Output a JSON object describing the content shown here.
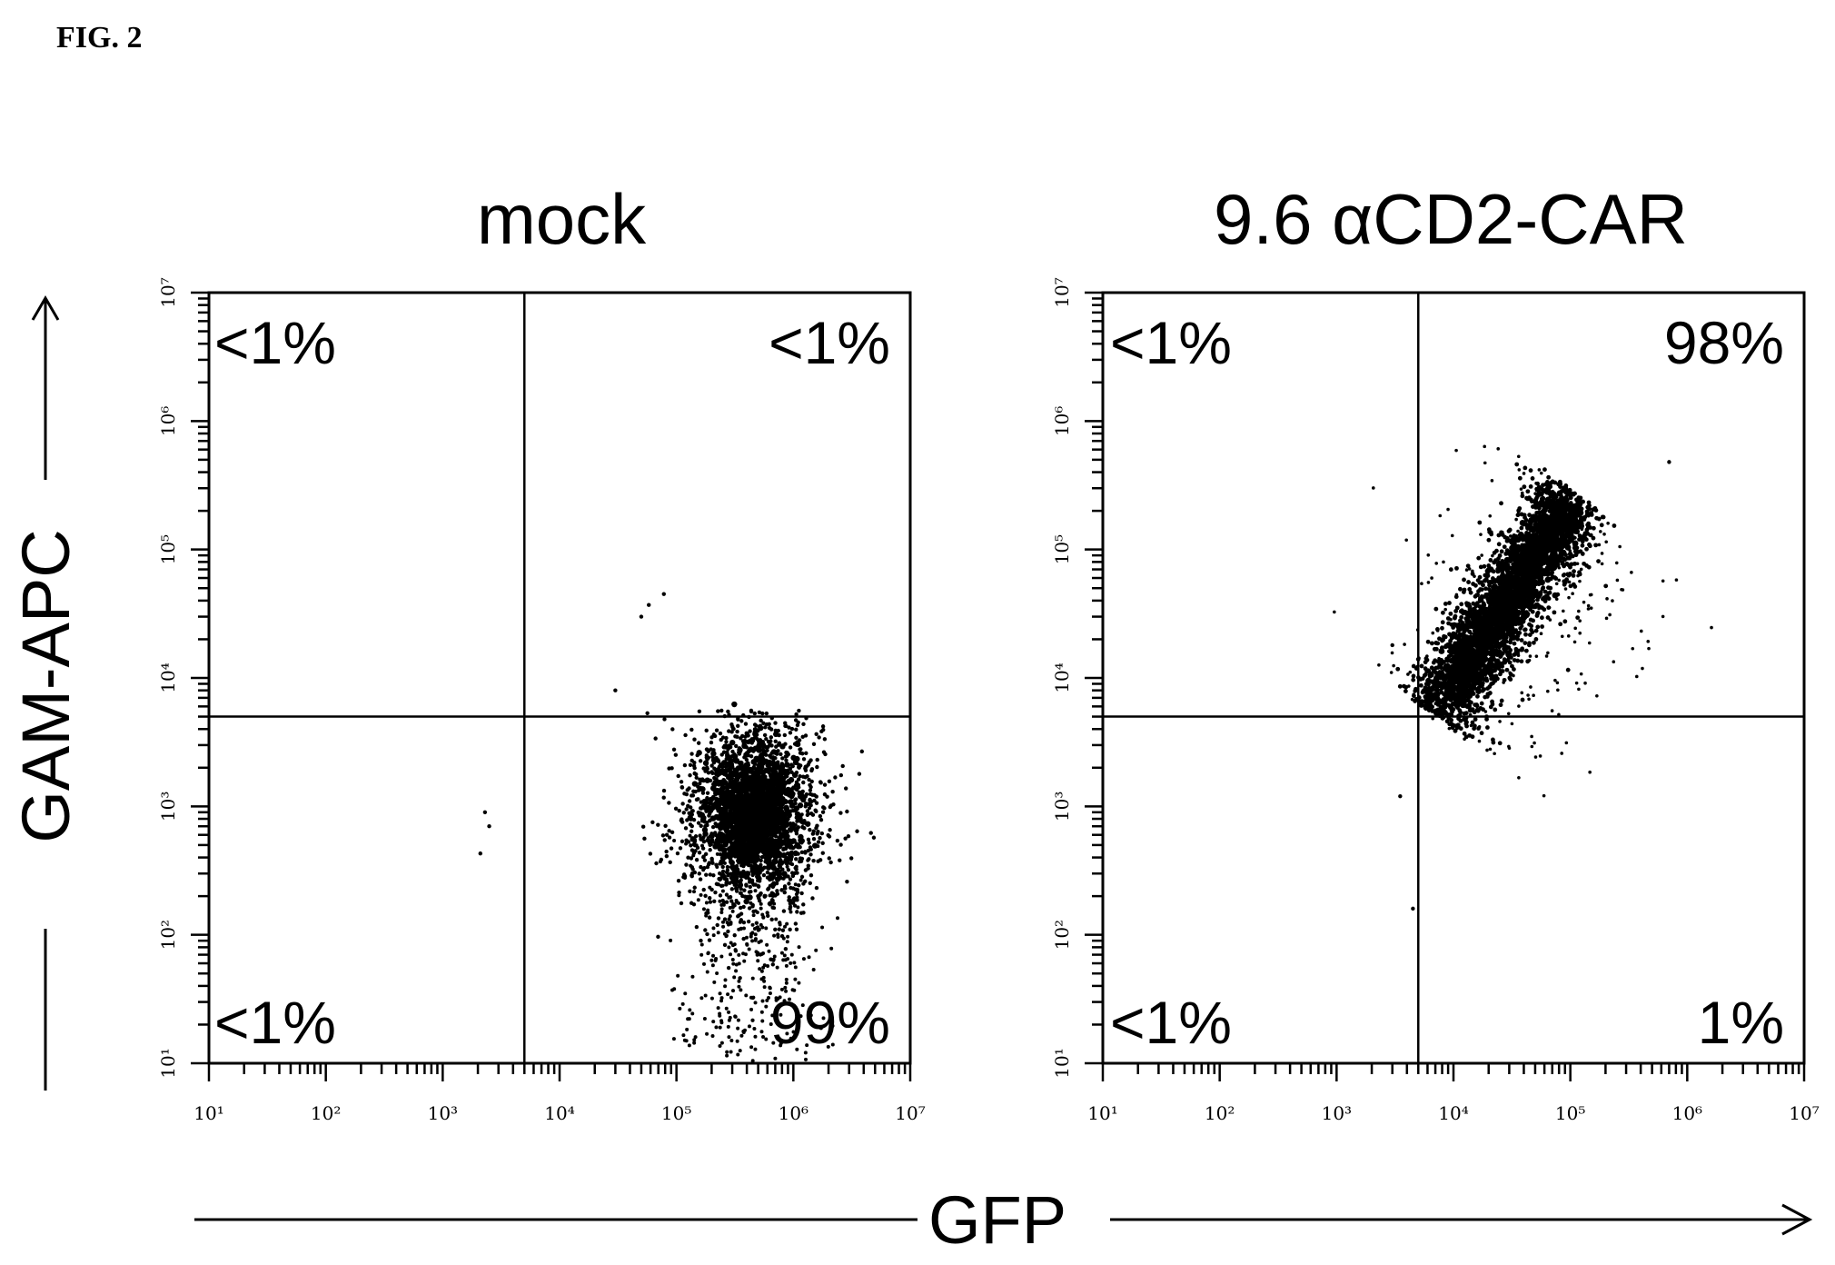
{
  "figure_label": "FIG. 2",
  "axis_labels": {
    "x": "GFP",
    "y": "GAM-APC"
  },
  "chart_data": [
    {
      "type": "scatter",
      "title": "mock",
      "xlabel": "GFP",
      "ylabel": "GAM-APC",
      "x_scale": "log",
      "y_scale": "log",
      "xlim": [
        10,
        10000000
      ],
      "ylim": [
        10,
        10000000
      ],
      "x_ticks": [
        "10¹",
        "10²",
        "10³",
        "10⁴",
        "10⁵",
        "10⁶",
        "10⁷"
      ],
      "y_ticks": [
        "10¹",
        "10²",
        "10³",
        "10⁴",
        "10⁵",
        "10⁶",
        "10⁷"
      ],
      "gate": {
        "x": 5000,
        "y": 5000
      },
      "quadrants": {
        "upper_left": "<1%",
        "upper_right": "<1%",
        "lower_left": "<1%",
        "lower_right": "99%"
      },
      "population": {
        "center": [
          450000,
          900
        ],
        "spread_log10": [
          0.3,
          0.4
        ],
        "main_events": 1800,
        "tail_events": 450,
        "tail_to_y": 12
      },
      "outliers": [
        [
          50000,
          30000
        ],
        [
          58000,
          37000
        ],
        [
          78000,
          45000
        ],
        [
          2300,
          900
        ],
        [
          2500,
          700
        ],
        [
          2100,
          430
        ],
        [
          30000,
          8000
        ]
      ]
    },
    {
      "type": "scatter",
      "title": "9.6 αCD2-CAR",
      "xlabel": "GFP",
      "ylabel": "GAM-APC",
      "x_scale": "log",
      "y_scale": "log",
      "xlim": [
        10,
        10000000
      ],
      "ylim": [
        10,
        10000000
      ],
      "x_ticks": [
        "10¹",
        "10²",
        "10³",
        "10⁴",
        "10⁵",
        "10⁶",
        "10⁷"
      ],
      "y_ticks": [
        "10¹",
        "10²",
        "10³",
        "10⁴",
        "10⁵",
        "10⁶",
        "10⁷"
      ],
      "gate": {
        "x": 5000,
        "y": 5000
      },
      "quadrants": {
        "upper_left": "<1%",
        "upper_right": "98%",
        "lower_left": "<1%",
        "lower_right": "1%"
      },
      "population": {
        "from": [
          7000,
          5000
        ],
        "to": [
          110000,
          280000
        ],
        "spread_log10": 0.17,
        "main_events": 2200,
        "scatter_events": 320
      },
      "outliers": [
        [
          3500,
          1200
        ],
        [
          4500,
          160
        ],
        [
          700000,
          480000
        ],
        [
          3000,
          18000
        ]
      ]
    }
  ]
}
